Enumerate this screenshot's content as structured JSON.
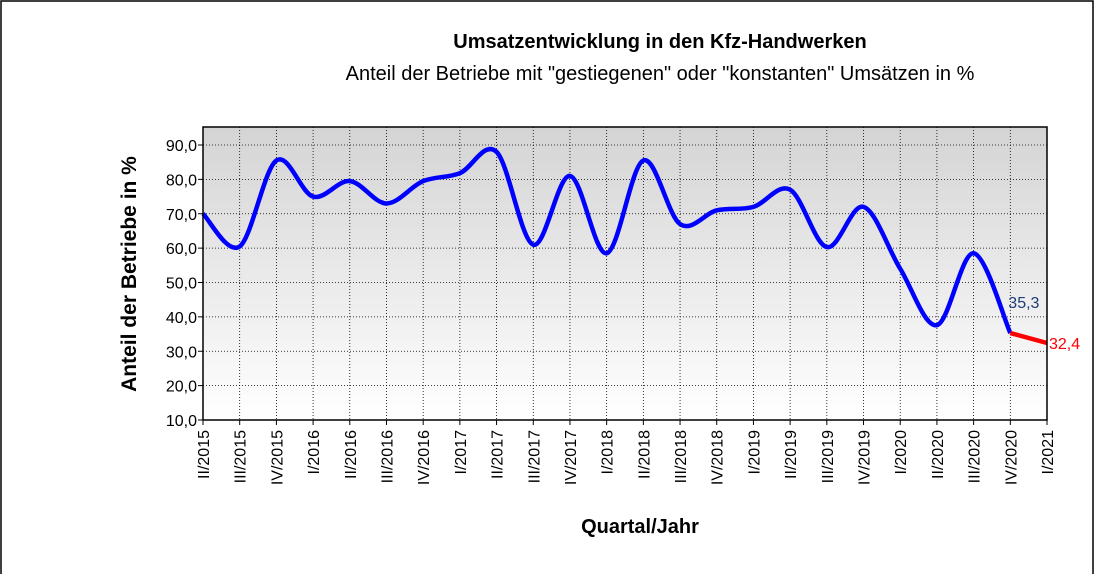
{
  "chart_data": {
    "type": "line",
    "title": "Umsatzentwicklung in den Kfz-Handwerken",
    "subtitle": "Anteil der Betriebe mit \"gestiegenen\" oder \"konstanten\" Umsätzen in %",
    "x_label": "Quartal/Jahr",
    "y_label": "Anteil der Betriebe in %",
    "categories": [
      "II/2015",
      "III/2015",
      "IV/2015",
      "I/2016",
      "II/2016",
      "III/2016",
      "IV/2016",
      "I/2017",
      "II/2017",
      "III/2017",
      "IV/2017",
      "I/2018",
      "II/2018",
      "III/2018",
      "IV/2018",
      "I/2019",
      "II/2019",
      "III/2019",
      "IV/2019",
      "I/2020",
      "II/2020",
      "III/2020",
      "IV/2020",
      "I/2021"
    ],
    "series": [
      {
        "color": "#0000ff",
        "label_color": "#1f3c78",
        "values": [
          70,
          60.5,
          85.5,
          75,
          79.5,
          73,
          79.5,
          81.8,
          88,
          61,
          81,
          58.5,
          85.5,
          67,
          71,
          72,
          77,
          60.3,
          72,
          54,
          37.6,
          58.5,
          35.3,
          null
        ],
        "value_labels": [
          null,
          null,
          null,
          null,
          null,
          null,
          null,
          null,
          null,
          null,
          null,
          null,
          null,
          null,
          null,
          null,
          null,
          null,
          null,
          null,
          null,
          null,
          "35,3",
          null
        ]
      },
      {
        "color": "#ff0000",
        "label_color": "#ff0000",
        "values": [
          null,
          null,
          null,
          null,
          null,
          null,
          null,
          null,
          null,
          null,
          null,
          null,
          null,
          null,
          null,
          null,
          null,
          null,
          null,
          null,
          null,
          null,
          35.3,
          32.4
        ],
        "value_labels": [
          null,
          null,
          null,
          null,
          null,
          null,
          null,
          null,
          null,
          null,
          null,
          null,
          null,
          null,
          null,
          null,
          null,
          null,
          null,
          null,
          null,
          null,
          null,
          "32,4"
        ]
      }
    ],
    "ylim": [
      10,
      90
    ],
    "yticks": [
      {
        "value": 10,
        "label": "10,0"
      },
      {
        "value": 20,
        "label": "20,0"
      },
      {
        "value": 30,
        "label": "30,0"
      },
      {
        "value": 40,
        "label": "40,0"
      },
      {
        "value": 50,
        "label": "50,0"
      },
      {
        "value": 60,
        "label": "60,0"
      },
      {
        "value": 70,
        "label": "70,0"
      },
      {
        "value": 80,
        "label": "80,0"
      },
      {
        "value": 90,
        "label": "90,0"
      }
    ],
    "grid": true
  }
}
